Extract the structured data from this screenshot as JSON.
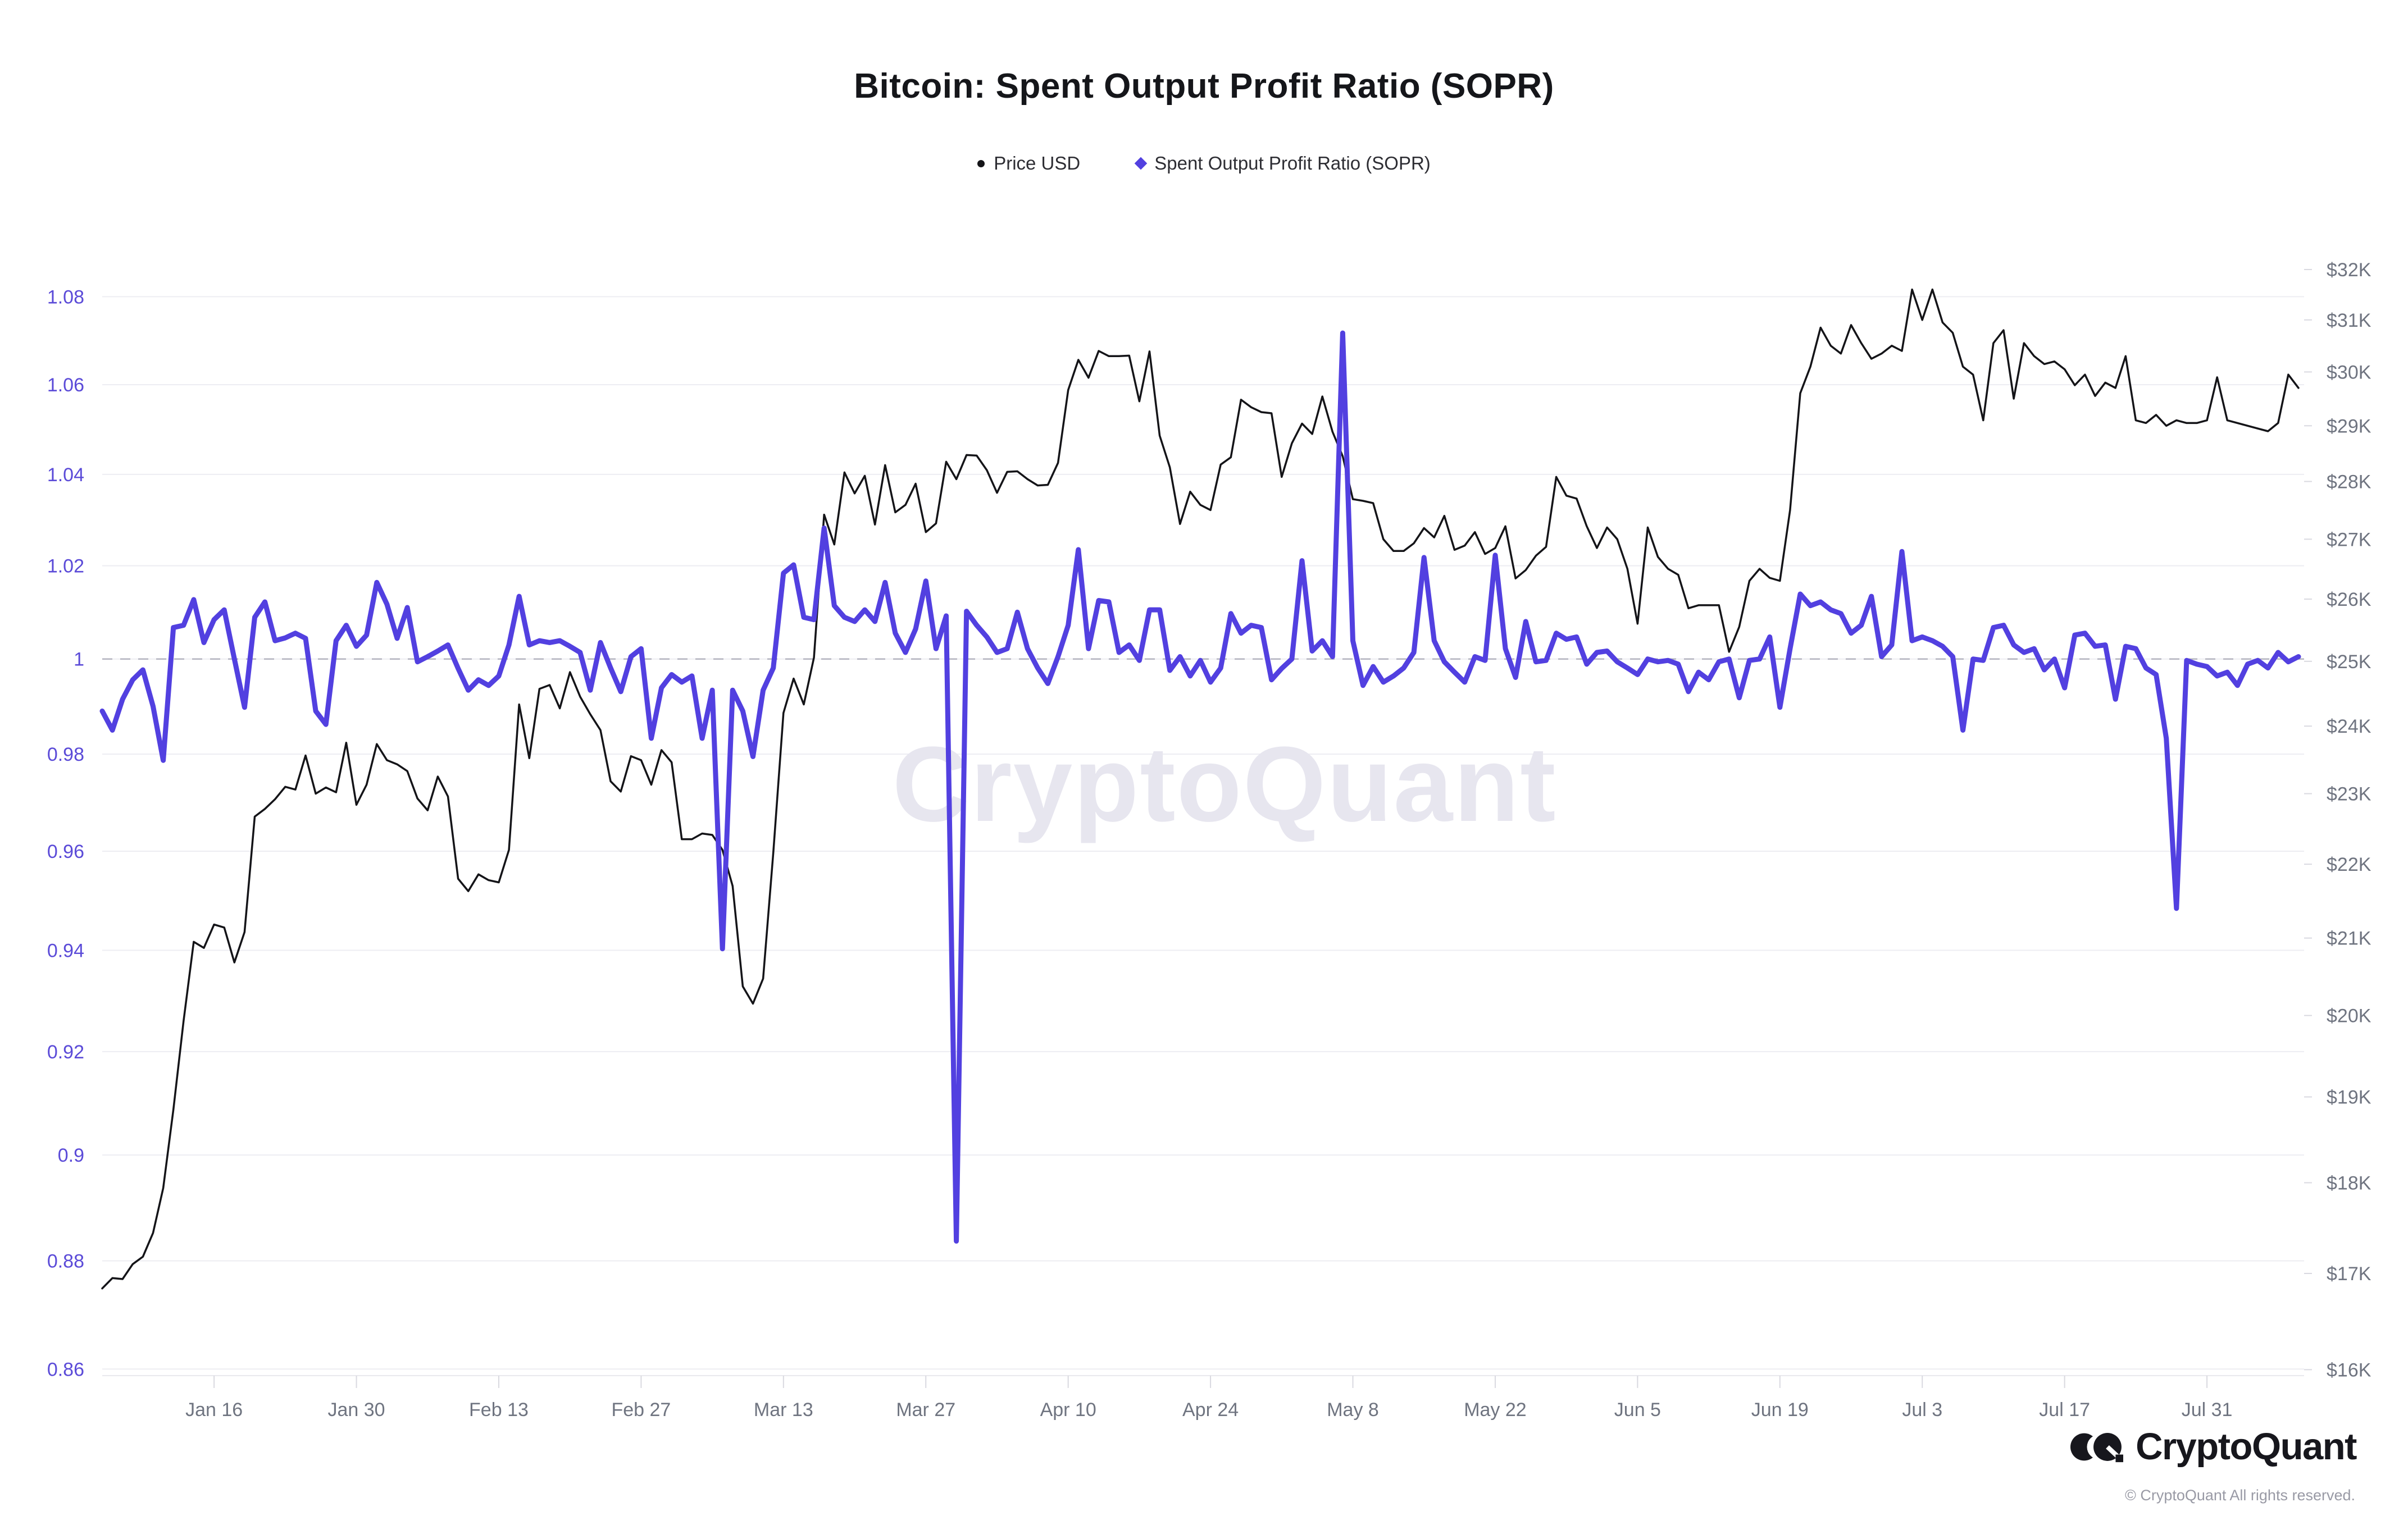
{
  "header": {
    "title": "Bitcoin: Spent Output Profit Ratio (SOPR)"
  },
  "legend": {
    "price": {
      "label": "Price USD",
      "marker": "dot",
      "color": "#141418"
    },
    "sopr": {
      "label": "Spent Output Profit Ratio (SOPR)",
      "marker": "diamond",
      "color": "#5240e0"
    }
  },
  "watermark": "CryptoQuant",
  "footer": {
    "brand": "CryptoQuant",
    "copyright": "© CryptoQuant All rights reserved."
  },
  "colors": {
    "price_line": "#141418",
    "sopr_line": "#5240e0",
    "left_axis_labels": "#5b4bd8",
    "right_axis_labels": "#6f7480",
    "x_axis_labels": "#6f7480",
    "gridline": "#ededf2",
    "reference_dash": "#b7b7c2",
    "tick_mark": "#d9d9e0",
    "watermark": "#e7e6ef"
  },
  "chart_data": {
    "type": "line",
    "title": "Bitcoin: Spent Output Profit Ratio (SOPR)",
    "start_date": "2023-01-05",
    "frequency": "daily",
    "n_points": 217,
    "x_tick_labels": [
      "Jan 16",
      "Jan 30",
      "Feb 13",
      "Feb 27",
      "Mar 13",
      "Mar 27",
      "Apr 10",
      "Apr 24",
      "May 8",
      "May 22",
      "Jun 5",
      "Jun 19",
      "Jul 3",
      "Jul 17",
      "Jul 31"
    ],
    "x_tick_day_index": [
      11,
      25,
      39,
      53,
      67,
      81,
      95,
      109,
      123,
      137,
      151,
      165,
      179,
      193,
      207
    ],
    "left_axis": {
      "scale": "log",
      "domain": [
        0.8588,
        1.1006
      ],
      "tick_values": [
        1.08,
        1.06,
        1.04,
        1.02,
        1,
        0.98,
        0.96,
        0.94,
        0.92,
        0.9,
        0.88,
        0.86
      ],
      "tick_labels": [
        "1.08",
        "1.06",
        "1.04",
        "1.02",
        "1",
        "0.98",
        "0.96",
        "0.94",
        "0.92",
        "0.9",
        "0.88",
        "0.86"
      ]
    },
    "right_axis": {
      "scale": "log",
      "domain": [
        15940,
        33270
      ],
      "tick_values": [
        32000,
        31000,
        30000,
        29000,
        28000,
        27000,
        26000,
        25000,
        24000,
        23000,
        22000,
        21000,
        20000,
        19000,
        18000,
        17000,
        16000
      ],
      "tick_labels": [
        "$32K",
        "$31K",
        "$30K",
        "$29K",
        "$28K",
        "$27K",
        "$26K",
        "$25K",
        "$24K",
        "$23K",
        "$22K",
        "$21K",
        "$20K",
        "$19K",
        "$18K",
        "$17K",
        "$16K"
      ]
    },
    "reference_line": {
      "axis": "left",
      "value": 1
    },
    "grid": "horizontal-only",
    "legend_position": "top-center",
    "series": [
      {
        "name": "Price USD",
        "axis": "right",
        "color": "#141418",
        "width": 3.5,
        "values_unit": "USD thousands",
        "values": [
          16.84,
          16.95,
          16.94,
          17.1,
          17.18,
          17.44,
          17.94,
          18.85,
          19.93,
          20.95,
          20.87,
          21.18,
          21.14,
          20.68,
          21.08,
          22.67,
          22.78,
          22.92,
          23.1,
          23.06,
          23.56,
          23.0,
          23.09,
          23.02,
          23.75,
          22.84,
          23.13,
          23.73,
          23.49,
          23.43,
          23.33,
          22.93,
          22.76,
          23.25,
          22.96,
          21.8,
          21.63,
          21.86,
          21.78,
          21.75,
          22.2,
          24.33,
          23.52,
          24.57,
          24.63,
          24.27,
          24.83,
          24.45,
          24.18,
          23.94,
          23.18,
          23.03,
          23.55,
          23.49,
          23.13,
          23.64,
          23.46,
          22.35,
          22.35,
          22.43,
          22.41,
          22.2,
          21.7,
          20.37,
          20.15,
          20.47,
          22.16,
          24.2,
          24.73,
          24.33,
          25.06,
          27.42,
          26.91,
          28.16,
          27.79,
          28.1,
          27.25,
          28.29,
          27.46,
          27.59,
          27.96,
          27.12,
          27.27,
          28.35,
          28.04,
          28.47,
          28.46,
          28.2,
          27.8,
          28.17,
          28.18,
          28.04,
          27.93,
          27.94,
          28.33,
          29.66,
          30.23,
          29.89,
          30.4,
          30.3,
          30.3,
          30.31,
          29.45,
          30.39,
          28.82,
          28.25,
          27.26,
          27.82,
          27.59,
          27.5,
          28.3,
          28.43,
          29.48,
          29.34,
          29.25,
          29.23,
          28.08,
          28.68,
          29.04,
          28.85,
          29.54,
          28.89,
          28.45,
          27.69,
          27.66,
          27.62,
          27.0,
          26.8,
          26.8,
          26.93,
          27.19,
          27.03,
          27.4,
          26.82,
          26.89,
          27.12,
          26.75,
          26.85,
          27.22,
          26.34,
          26.48,
          26.72,
          26.87,
          28.08,
          27.75,
          27.7,
          27.22,
          26.85,
          27.2,
          27.0,
          26.5,
          25.6,
          27.2,
          26.7,
          26.5,
          26.4,
          25.85,
          25.9,
          25.9,
          25.9,
          25.15,
          25.55,
          26.3,
          26.5,
          26.35,
          26.3,
          27.5,
          29.6,
          30.1,
          30.85,
          30.5,
          30.35,
          30.9,
          30.55,
          30.25,
          30.35,
          30.5,
          30.4,
          31.6,
          31.0,
          31.6,
          30.95,
          30.75,
          30.1,
          29.95,
          29.1,
          30.55,
          30.8,
          29.5,
          30.55,
          30.3,
          30.15,
          30.2,
          30.05,
          29.75,
          29.95,
          29.55,
          29.8,
          29.7,
          30.3,
          29.1,
          29.05,
          29.2,
          29.0,
          29.1,
          29.05,
          29.05,
          29.1,
          29.9,
          29.1,
          29.05,
          29.0,
          28.95,
          28.9,
          29.05,
          29.95,
          29.7
        ]
      },
      {
        "name": "Spent Output Profit Ratio (SOPR)",
        "axis": "left",
        "color": "#5240e0",
        "width": 9,
        "values": [
          0.989,
          0.985,
          0.9915,
          0.9956,
          0.9977,
          0.99,
          0.9787,
          1.0067,
          1.0072,
          1.0127,
          1.0035,
          1.0084,
          1.0105,
          1.0,
          0.9898,
          1.0089,
          1.0122,
          1.0039,
          1.0045,
          1.0055,
          1.0044,
          0.989,
          0.9862,
          1.0039,
          1.0072,
          1.0027,
          1.0051,
          1.0164,
          1.0117,
          1.0044,
          1.011,
          0.9994,
          1.0005,
          1.0017,
          1.003,
          0.998,
          0.9934,
          0.9956,
          0.9944,
          0.9964,
          1.003,
          1.0134,
          1.003,
          1.0039,
          1.0035,
          1.0039,
          1.0027,
          1.0014,
          0.9934,
          1.0035,
          0.9981,
          0.9931,
          1.0005,
          1.0022,
          0.9833,
          0.9939,
          0.9967,
          0.9951,
          0.9964,
          0.9833,
          0.9934,
          0.9403,
          0.9934,
          0.989,
          0.9795,
          0.9934,
          0.9981,
          1.0184,
          1.0202,
          1.0089,
          1.0084,
          1.0282,
          1.0114,
          1.0089,
          1.008,
          1.0105,
          1.008,
          1.0164,
          1.0055,
          1.0014,
          1.0064,
          1.0167,
          1.0022,
          1.0092,
          0.8837,
          1.0102,
          1.0072,
          1.0047,
          1.0014,
          1.0022,
          1.01,
          1.0022,
          0.9981,
          0.9948,
          1.0005,
          1.0072,
          1.0235,
          1.0022,
          1.0125,
          1.0122,
          1.0014,
          1.003,
          0.9997,
          1.0105,
          1.0105,
          0.9976,
          1.0005,
          0.9964,
          0.9997,
          0.9951,
          0.9981,
          1.0097,
          1.0055,
          1.0072,
          1.0067,
          0.9956,
          0.998,
          1.0,
          1.0211,
          1.0017,
          1.0039,
          1.0005,
          1.0717,
          1.0039,
          0.9944,
          0.9984,
          0.9951,
          0.9964,
          0.9981,
          1.0014,
          1.0218,
          1.0039,
          0.9994,
          0.9972,
          0.9951,
          1.0005,
          0.9997,
          1.0223,
          1.0022,
          0.9961,
          1.008,
          0.9994,
          0.9997,
          1.0055,
          1.0042,
          1.0047,
          0.9989,
          1.0014,
          1.0017,
          0.9994,
          0.9981,
          0.9967,
          1.0,
          0.9994,
          0.9997,
          0.9989,
          0.9931,
          0.9972,
          0.9956,
          0.9994,
          1.0,
          0.9918,
          0.9997,
          1.0,
          1.0047,
          0.9898,
          1.0022,
          1.0139,
          1.0114,
          1.0122,
          1.0105,
          1.0097,
          1.0055,
          1.0072,
          1.0134,
          1.0005,
          1.003,
          1.0231,
          1.0039,
          1.0047,
          1.0039,
          1.0027,
          1.0005,
          0.985,
          1.0,
          0.9997,
          1.0067,
          1.0072,
          1.003,
          1.0014,
          1.0022,
          0.9977,
          1.0,
          0.9939,
          1.0051,
          1.0055,
          1.0027,
          1.003,
          0.9915,
          1.0027,
          1.0022,
          0.9981,
          0.9967,
          0.9833,
          0.9484,
          0.9997,
          0.9989,
          0.9984,
          0.9964,
          0.9972,
          0.9944,
          0.9989,
          0.9997,
          0.9981,
          1.0014,
          0.9994,
          1.0005
        ]
      }
    ]
  }
}
